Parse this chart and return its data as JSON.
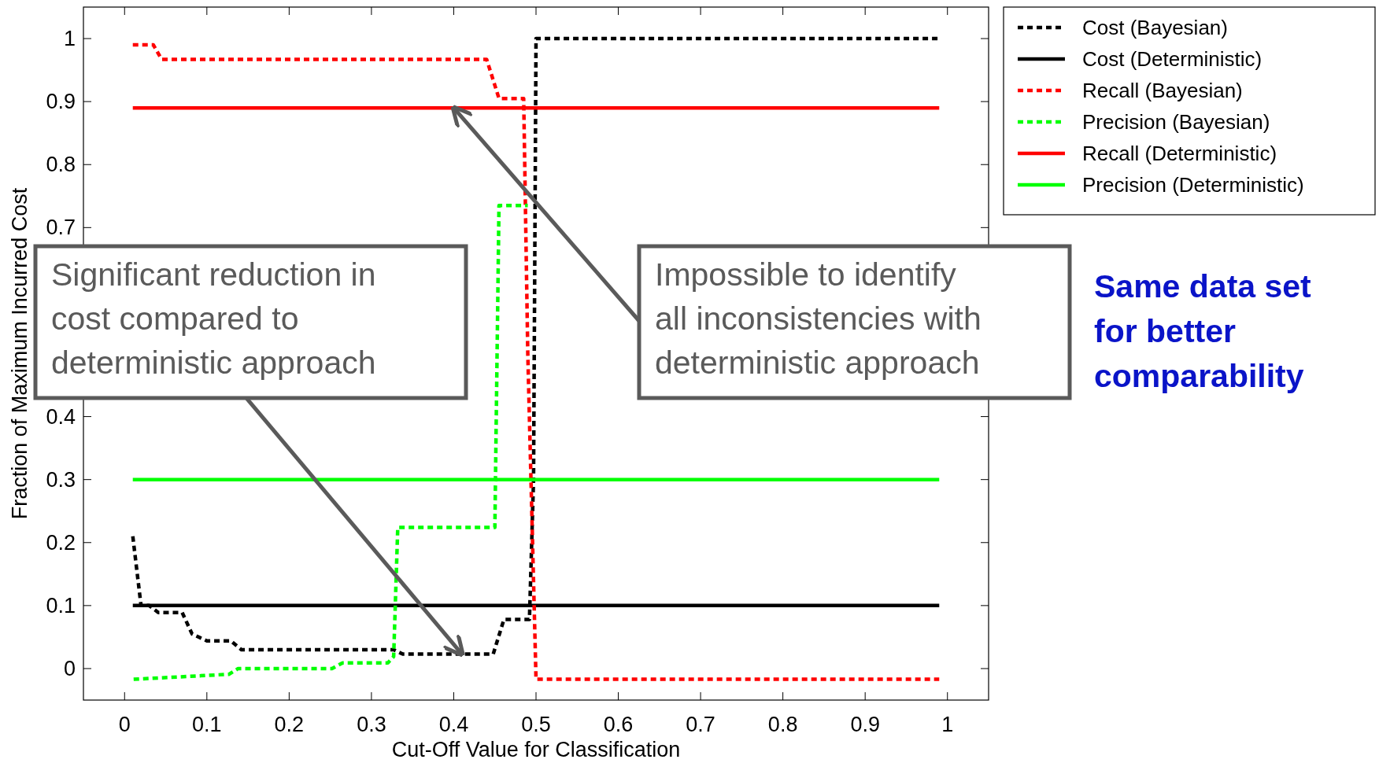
{
  "chart_data": {
    "type": "line",
    "xlabel": "Cut-Off Value for Classification",
    "ylabel": "Fraction of Maximum Incurred Cost",
    "xlim": [
      -0.05,
      1.05
    ],
    "ylim": [
      -0.05,
      1.05
    ],
    "xticks": [
      0,
      0.1,
      0.2,
      0.3,
      0.4,
      0.5,
      0.6,
      0.7,
      0.8,
      0.9,
      1
    ],
    "yticks": [
      0,
      0.1,
      0.2,
      0.3,
      0.4,
      0.7,
      0.8,
      0.9,
      1
    ],
    "grid": false,
    "legend": "top right",
    "series": [
      {
        "name": "Cost (Bayesian)",
        "color": "#000000",
        "line_style": "dotted",
        "x": [
          0.01,
          0.02,
          0.03,
          0.041,
          0.07,
          0.082,
          0.1,
          0.129,
          0.142,
          0.327,
          0.338,
          0.448,
          0.461,
          0.492,
          0.497,
          0.5,
          0.99
        ],
        "values": [
          0.21,
          0.1,
          0.1,
          0.089,
          0.089,
          0.055,
          0.044,
          0.044,
          0.03,
          0.03,
          0.023,
          0.023,
          0.078,
          0.078,
          0.3,
          1,
          1
        ]
      },
      {
        "name": "Cost (Deterministic)",
        "color": "#000000",
        "line_style": "solid",
        "x": [
          0.01,
          0.99
        ],
        "values": [
          0.1,
          0.1
        ]
      },
      {
        "name": "Recall (Bayesian)",
        "color": "#ff0000",
        "line_style": "dotted",
        "x": [
          0.01,
          0.035,
          0.045,
          0.44,
          0.455,
          0.485,
          0.49,
          0.5,
          0.99
        ],
        "values": [
          0.99,
          0.99,
          0.967,
          0.967,
          0.905,
          0.905,
          0.5,
          -0.017,
          -0.017
        ]
      },
      {
        "name": "Precision (Bayesian)",
        "color": "#00ff00",
        "line_style": "dotted",
        "x": [
          0.011,
          0.127,
          0.138,
          0.252,
          0.265,
          0.32,
          0.327,
          0.332,
          0.338,
          0.45,
          0.455,
          0.49
        ],
        "values": [
          -0.017,
          -0.009,
          0,
          0,
          0.009,
          0.009,
          0.019,
          0.224,
          0.224,
          0.224,
          0.735,
          0.735
        ]
      },
      {
        "name": "Recall (Deterministic)",
        "color": "#ff0000",
        "line_style": "solid",
        "x": [
          0.01,
          0.99
        ],
        "values": [
          0.89,
          0.89
        ]
      },
      {
        "name": "Precision (Deterministic)",
        "color": "#00ff00",
        "line_style": "solid",
        "x": [
          0.01,
          0.99
        ],
        "values": [
          0.3,
          0.3
        ]
      }
    ],
    "annotations": [
      {
        "text": "Significant reduction in cost compared to deterministic approach",
        "x": 0.41,
        "y": 0.023
      },
      {
        "text": "Impossible to identify all inconsistencies with deterministic approach",
        "x": 0.4,
        "y": 0.89
      },
      "Same data set for better comparability"
    ]
  }
}
